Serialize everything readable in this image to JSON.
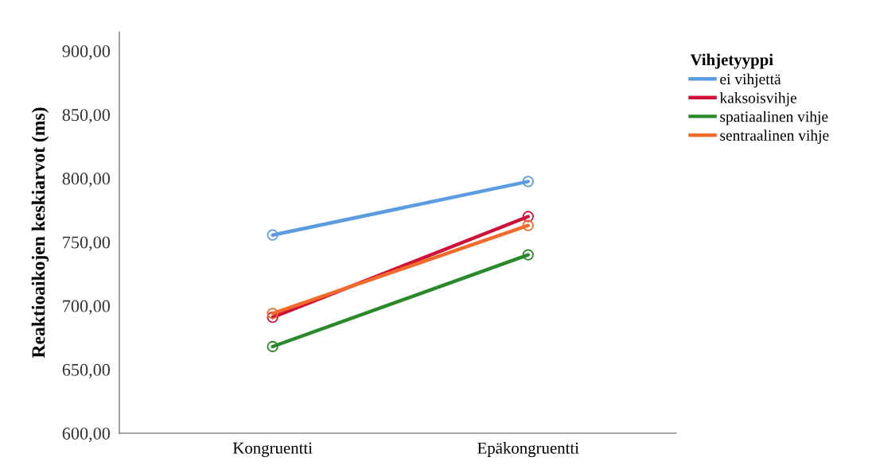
{
  "chart_data": {
    "type": "line",
    "ylabel": "Reaktioaikojen keskiarvot (ms)",
    "legend_title": "Vihjetyyppi",
    "legend": "top right",
    "marker": "circle",
    "line_style": "solid",
    "grid": false,
    "categories": [
      "Kongruentti",
      "Epäkongruentti"
    ],
    "ylim": [
      600,
      915
    ],
    "yticks": [
      {
        "value": 600,
        "label": "600,00"
      },
      {
        "value": 650,
        "label": "650,00"
      },
      {
        "value": 700,
        "label": "700,00"
      },
      {
        "value": 750,
        "label": "750,00"
      },
      {
        "value": 800,
        "label": "800,00"
      },
      {
        "value": 850,
        "label": "850,00"
      },
      {
        "value": 900,
        "label": "900,00"
      }
    ],
    "series": [
      {
        "name": "ei vihjettä",
        "color": "#5b9be0",
        "values": [
          755.5,
          797.5
        ]
      },
      {
        "name": "kaksoisvihje",
        "color": "#d0103a",
        "values": [
          691,
          770
        ]
      },
      {
        "name": "spatiaalinen vihje",
        "color": "#2a8a2a",
        "values": [
          668,
          740
        ]
      },
      {
        "name": "sentraalinen vihje",
        "color": "#f26b2a",
        "values": [
          694,
          763
        ]
      }
    ]
  }
}
